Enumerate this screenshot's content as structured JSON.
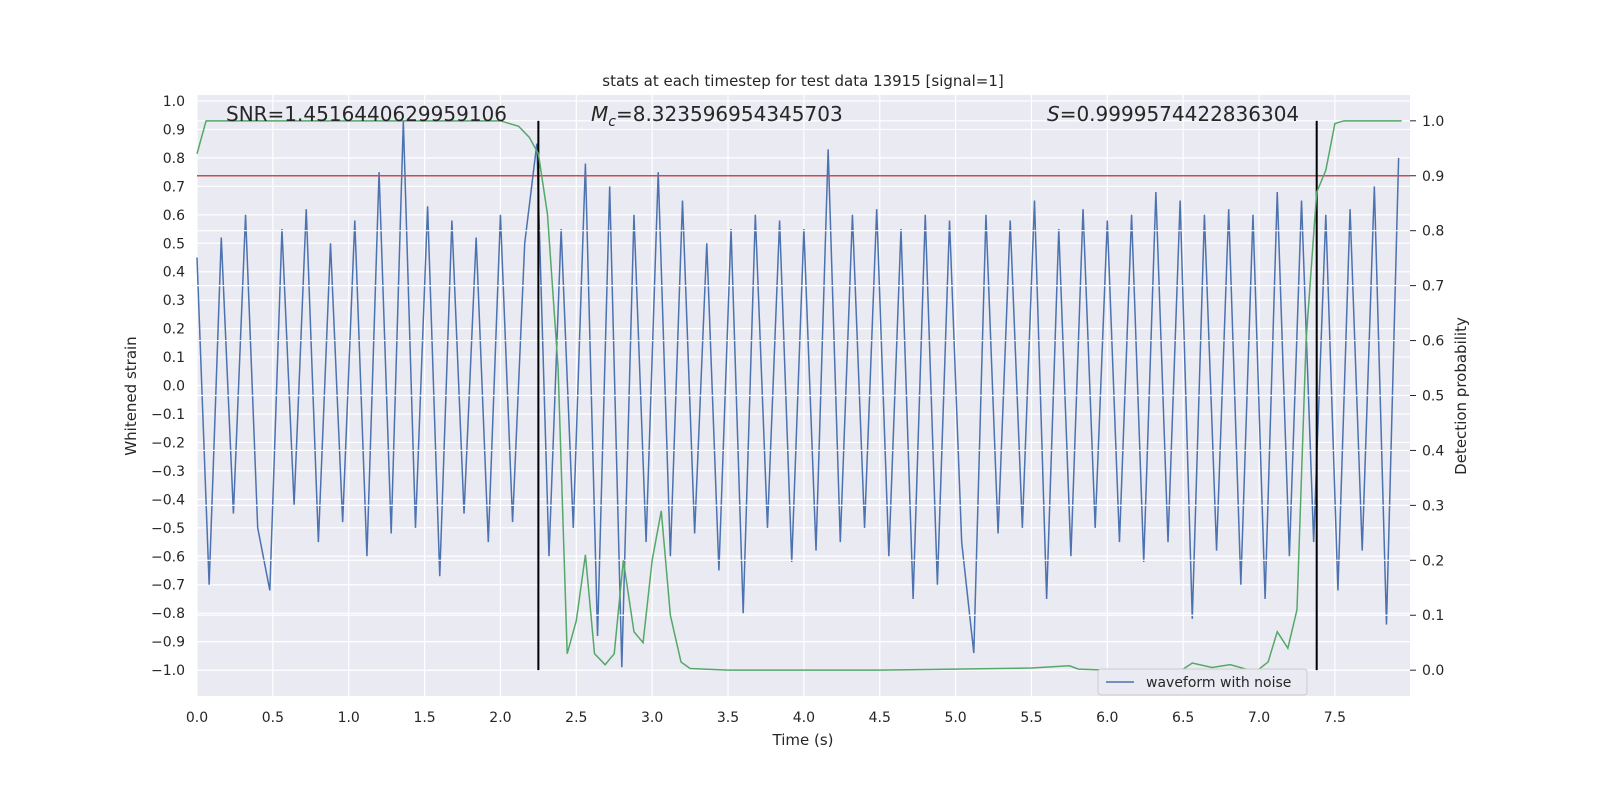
{
  "chart_data": {
    "type": "line",
    "title": "stats at each timestep for test data 13915 [signal=1]",
    "x_label": "Time (s)",
    "y_label": "Whitened strain",
    "y2_label": "Detection probability",
    "xlim": [
      0,
      7.995
    ],
    "ylim": [
      -1.091,
      1.021
    ],
    "y2lim": [
      -0.047,
      1.047
    ],
    "grid": true,
    "legend": "lower right",
    "xticks": [
      {
        "value": 0,
        "label": "0.0"
      },
      {
        "value": 0.5,
        "label": "0.5"
      },
      {
        "value": 1,
        "label": "1.0"
      },
      {
        "value": 1.5,
        "label": "1.5"
      },
      {
        "value": 2,
        "label": "2.0"
      },
      {
        "value": 2.5,
        "label": "2.5"
      },
      {
        "value": 3,
        "label": "3.0"
      },
      {
        "value": 3.5,
        "label": "3.5"
      },
      {
        "value": 4,
        "label": "4.0"
      },
      {
        "value": 4.5,
        "label": "4.5"
      },
      {
        "value": 5,
        "label": "5.0"
      },
      {
        "value": 5.5,
        "label": "5.5"
      },
      {
        "value": 6,
        "label": "6.0"
      },
      {
        "value": 6.5,
        "label": "6.5"
      },
      {
        "value": 7,
        "label": "7.0"
      },
      {
        "value": 7.5,
        "label": "7.5"
      }
    ],
    "yticks": [
      {
        "value": 1,
        "label": "1.0"
      },
      {
        "value": 0.9,
        "label": "0.9"
      },
      {
        "value": 0.8,
        "label": "0.8"
      },
      {
        "value": 0.7,
        "label": "0.7"
      },
      {
        "value": 0.6,
        "label": "0.6"
      },
      {
        "value": 0.5,
        "label": "0.5"
      },
      {
        "value": 0.4,
        "label": "0.4"
      },
      {
        "value": 0.3,
        "label": "0.3"
      },
      {
        "value": 0.2,
        "label": "0.2"
      },
      {
        "value": 0.1,
        "label": "0.1"
      },
      {
        "value": 0,
        "label": "0.0"
      },
      {
        "value": -0.1,
        "label": "−0.1"
      },
      {
        "value": -0.2,
        "label": "−0.2"
      },
      {
        "value": -0.3,
        "label": "−0.3"
      },
      {
        "value": -0.4,
        "label": "−0.4"
      },
      {
        "value": -0.5,
        "label": "−0.5"
      },
      {
        "value": -0.6,
        "label": "−0.6"
      },
      {
        "value": -0.7,
        "label": "−0.7"
      },
      {
        "value": -0.8,
        "label": "−0.8"
      },
      {
        "value": -0.9,
        "label": "−0.9"
      },
      {
        "value": -1,
        "label": "−1.0"
      }
    ],
    "y2ticks": [
      {
        "value": 1,
        "label": "1.0"
      },
      {
        "value": 0.9,
        "label": "0.9"
      },
      {
        "value": 0.8,
        "label": "0.8"
      },
      {
        "value": 0.7,
        "label": "0.7"
      },
      {
        "value": 0.6,
        "label": "0.6"
      },
      {
        "value": 0.5,
        "label": "0.5"
      },
      {
        "value": 0.4,
        "label": "0.4"
      },
      {
        "value": 0.3,
        "label": "0.3"
      },
      {
        "value": 0.2,
        "label": "0.2"
      },
      {
        "value": 0.1,
        "label": "0.1"
      },
      {
        "value": 0,
        "label": "0.0"
      }
    ],
    "series": [
      {
        "name": "waveform with noise",
        "color": "#4c72b0",
        "x": [
          0,
          0.08,
          0.16,
          0.24,
          0.32,
          0.4,
          0.48,
          0.56,
          0.64,
          0.72,
          0.8,
          0.88,
          0.96,
          1.04,
          1.12,
          1.2,
          1.28,
          1.36,
          1.44,
          1.52,
          1.6,
          1.68,
          1.76,
          1.84,
          1.92,
          2,
          2.08,
          2.16,
          2.24,
          2.32,
          2.4,
          2.48,
          2.56,
          2.64,
          2.72,
          2.8,
          2.88,
          2.96,
          3.04,
          3.12,
          3.2,
          3.28,
          3.36,
          3.44,
          3.52,
          3.6,
          3.68,
          3.76,
          3.84,
          3.92,
          4,
          4.08,
          4.16,
          4.24,
          4.32,
          4.4,
          4.48,
          4.56,
          4.64,
          4.72,
          4.8,
          4.88,
          4.96,
          5.04,
          5.12,
          5.2,
          5.28,
          5.36,
          5.44,
          5.52,
          5.6,
          5.68,
          5.76,
          5.84,
          5.92,
          6,
          6.08,
          6.16,
          6.24,
          6.32,
          6.4,
          6.48,
          6.56,
          6.64,
          6.72,
          6.8,
          6.88,
          6.96,
          7.04,
          7.12,
          7.2,
          7.28,
          7.36,
          7.44,
          7.52,
          7.6,
          7.68,
          7.76,
          7.84,
          7.92
        ],
        "values": [
          0.45,
          -0.7,
          0.52,
          -0.45,
          0.6,
          -0.5,
          -0.72,
          0.55,
          -0.42,
          0.62,
          -0.55,
          0.5,
          -0.48,
          0.58,
          -0.6,
          0.75,
          -0.52,
          0.93,
          -0.5,
          0.63,
          -0.67,
          0.58,
          -0.45,
          0.52,
          -0.55,
          0.6,
          -0.48,
          0.5,
          0.85,
          -0.6,
          0.55,
          -0.5,
          0.78,
          -0.88,
          0.7,
          -0.99,
          0.6,
          -0.55,
          0.75,
          -0.6,
          0.65,
          -0.52,
          0.5,
          -0.65,
          0.55,
          -0.8,
          0.6,
          -0.5,
          0.58,
          -0.62,
          0.55,
          -0.58,
          0.83,
          -0.55,
          0.6,
          -0.5,
          0.62,
          -0.6,
          0.55,
          -0.75,
          0.6,
          -0.7,
          0.58,
          -0.55,
          -0.94,
          0.6,
          -0.52,
          0.58,
          -0.5,
          0.65,
          -0.75,
          0.55,
          -0.6,
          0.62,
          -0.5,
          0.58,
          -0.55,
          0.6,
          -0.62,
          0.68,
          -0.55,
          0.65,
          -0.82,
          0.6,
          -0.58,
          0.62,
          -0.7,
          0.6,
          -0.75,
          0.68,
          -0.6,
          0.65,
          -0.55,
          0.6,
          -0.72,
          0.62,
          -0.58,
          0.7,
          -0.84,
          0.8
        ]
      },
      {
        "color": "#55a868",
        "axis": "y2",
        "x": [
          0,
          0.06,
          0.5,
          1,
          1.5,
          2,
          2.12,
          2.19,
          2.25,
          2.31,
          2.38,
          2.44,
          2.5,
          2.56,
          2.62,
          2.69,
          2.75,
          2.81,
          2.88,
          2.94,
          3,
          3.06,
          3.12,
          3.19,
          3.25,
          3.5,
          4,
          4.5,
          5,
          5.5,
          5.75,
          5.81,
          6,
          6.5,
          6.56,
          6.69,
          6.81,
          6.94,
          7,
          7.06,
          7.12,
          7.19,
          7.25,
          7.31,
          7.38,
          7.44,
          7.5,
          7.56,
          7.94
        ],
        "values": [
          0.94,
          1,
          1,
          1,
          1,
          1,
          0.99,
          0.97,
          0.94,
          0.83,
          0.55,
          0.03,
          0.09,
          0.21,
          0.03,
          0.01,
          0.03,
          0.2,
          0.07,
          0.05,
          0.2,
          0.29,
          0.1,
          0.015,
          0.003,
          0,
          0,
          0,
          0.002,
          0.004,
          0.008,
          0.002,
          0,
          0.002,
          0.013,
          0.005,
          0.01,
          0,
          0.002,
          0.015,
          0.07,
          0.04,
          0.11,
          0.6,
          0.87,
          0.91,
          0.995,
          1,
          1
        ]
      }
    ],
    "threshold": {
      "value": 0.9,
      "axis": "y2",
      "color": "#c44e52"
    },
    "vlines": {
      "x": [
        2.25,
        7.38
      ],
      "ymin": 0,
      "ymax": 1,
      "axis": "y2",
      "color": "#000000"
    },
    "annotations": [
      {
        "text": "SNR=1.4516440629959106"
      },
      {
        "symbol": "M",
        "subscript": "c",
        "text": "=8.323596954345703"
      },
      {
        "symbol": "S",
        "text": "=0.9999574422836304"
      }
    ]
  }
}
